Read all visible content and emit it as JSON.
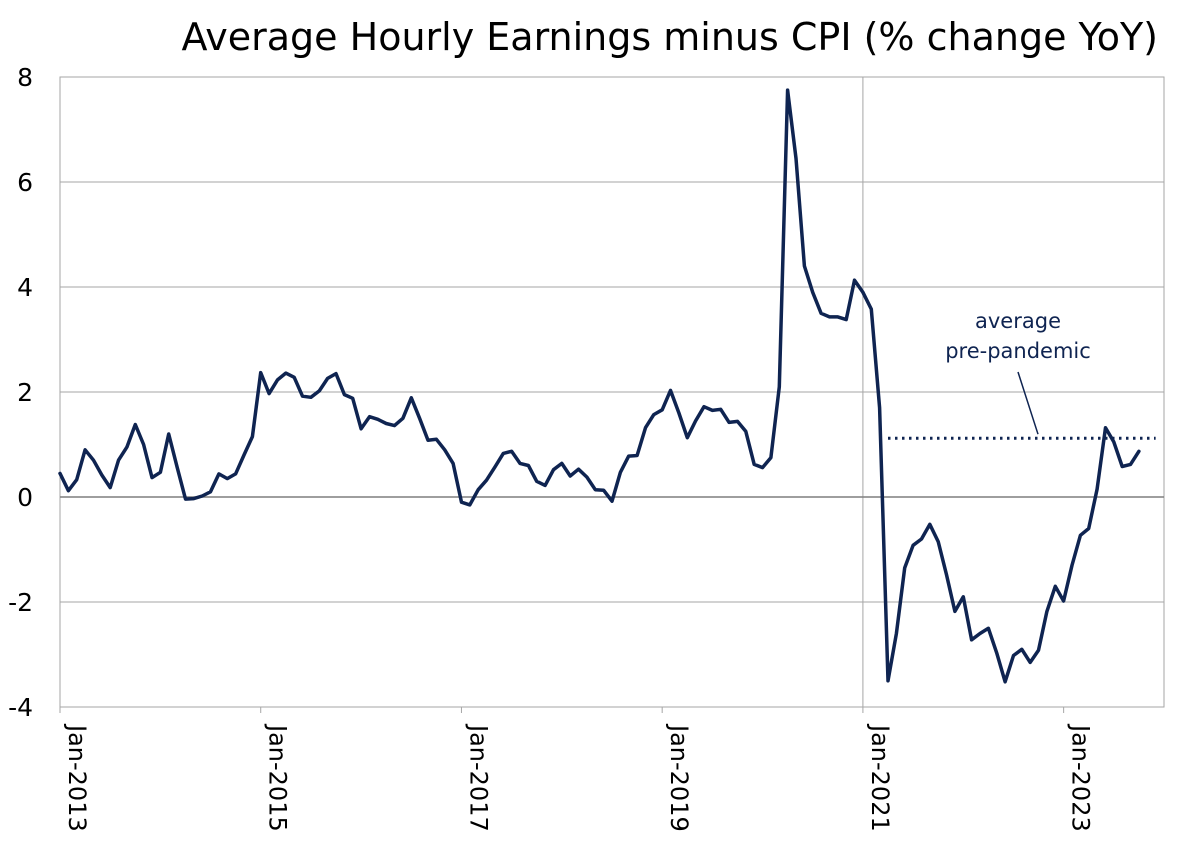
{
  "chart_data": {
    "type": "line",
    "title": "Average Hourly Earnings minus CPI (% change YoY)",
    "xlabel": "",
    "ylabel": "",
    "ylim": [
      -4,
      8
    ],
    "yticks": [
      "8",
      "6",
      "4",
      "2",
      "0",
      "-2",
      "-4"
    ],
    "xticks": [
      "Jan-2013",
      "Jan-2015",
      "Jan-2017",
      "Jan-2019",
      "Jan-2021",
      "Jan-2023"
    ],
    "xrange": [
      "Jan-2013",
      "Jan-2024"
    ],
    "grid": "horizontal",
    "line_color": "#0f2451",
    "x_start": "Jan-2013",
    "series": [
      {
        "values": [
          0.45,
          0.12,
          0.33,
          0.9,
          0.7,
          0.42,
          0.18,
          0.7,
          0.95,
          1.38,
          1.0,
          0.37,
          0.47,
          1.2,
          0.57,
          -0.04,
          -0.03,
          0.02,
          0.1,
          0.44,
          0.35,
          0.44,
          0.8,
          1.15,
          2.37,
          1.97,
          2.23,
          2.36,
          2.28,
          1.92,
          1.9,
          2.02,
          2.26,
          2.35,
          1.95,
          1.88,
          1.3,
          1.53,
          1.48,
          1.4,
          1.36,
          1.5,
          1.89,
          1.5,
          1.08,
          1.1,
          0.9,
          0.64,
          -0.1,
          -0.15,
          0.14,
          0.32,
          0.57,
          0.83,
          0.87,
          0.64,
          0.6,
          0.3,
          0.22,
          0.52,
          0.64,
          0.4,
          0.53,
          0.38,
          0.14,
          0.13,
          -0.08,
          0.47,
          0.78,
          0.79,
          1.32,
          1.57,
          1.66,
          2.03,
          1.6,
          1.13,
          1.45,
          1.72,
          1.65,
          1.67,
          1.42,
          1.44,
          1.25,
          0.62,
          0.56,
          0.75,
          2.1,
          7.75,
          6.45,
          4.4,
          3.9,
          3.5,
          3.43,
          3.43,
          3.38,
          4.13,
          3.9,
          3.58,
          1.7,
          -3.5,
          -2.6,
          -1.35,
          -0.92,
          -0.8,
          -0.52,
          -0.85,
          -1.48,
          -2.18,
          -1.9,
          -2.72,
          -2.6,
          -2.5,
          -2.97,
          -3.52,
          -3.02,
          -2.9,
          -3.15,
          -2.92,
          -2.18,
          -1.7,
          -1.98,
          -1.3,
          -0.73,
          -0.6,
          0.15,
          1.32,
          1.05,
          0.58,
          0.62,
          0.87
        ]
      }
    ],
    "reference_line": {
      "label_lines": [
        "average",
        "pre-pandemic"
      ],
      "value": 1.12,
      "from": "Apr-2021",
      "to": "Dec-2023",
      "style": "dotted"
    },
    "vertical_marker": "Jan-2021"
  }
}
